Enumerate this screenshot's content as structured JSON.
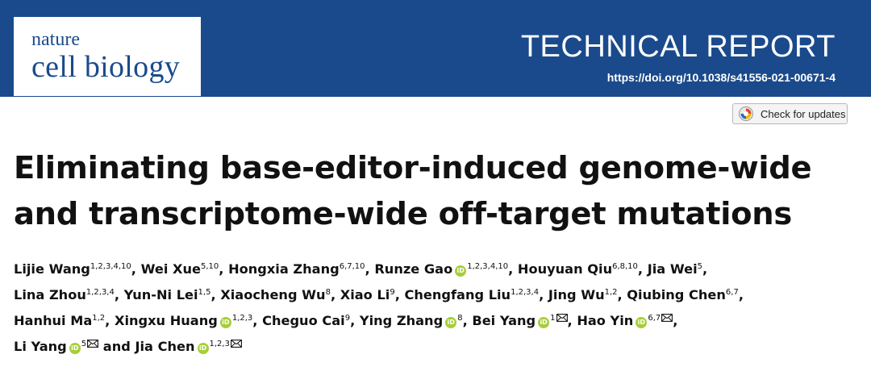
{
  "journal": {
    "name_line1": "nature",
    "name_line2": "cell biology"
  },
  "article_type": "TECHNICAL REPORT",
  "doi": "https://doi.org/10.1038/s41556-021-00671-4",
  "updates_button": {
    "label": "Check for updates",
    "icon": "check-for-updates-icon"
  },
  "title": {
    "line1": "Eliminating base-editor-induced genome-wide",
    "line2": "and transcriptome-wide off-target mutations"
  },
  "authors": [
    [
      {
        "name": "Lijie Wang",
        "aff": "1,2,3,4,10",
        "orcid": false,
        "corresponding": false,
        "sep": ", "
      },
      {
        "name": "Wei Xue",
        "aff": "5,10",
        "orcid": false,
        "corresponding": false,
        "sep": ", "
      },
      {
        "name": "Hongxia Zhang",
        "aff": "6,7,10",
        "orcid": false,
        "corresponding": false,
        "sep": ", "
      },
      {
        "name": "Runze Gao",
        "aff": "1,2,3,4,10",
        "orcid": true,
        "corresponding": false,
        "sep": ", "
      },
      {
        "name": "Houyuan Qiu",
        "aff": "6,8,10",
        "orcid": false,
        "corresponding": false,
        "sep": ", "
      },
      {
        "name": "Jia Wei",
        "aff": "5",
        "orcid": false,
        "corresponding": false,
        "sep": ","
      }
    ],
    [
      {
        "name": "Lina Zhou",
        "aff": "1,2,3,4",
        "orcid": false,
        "corresponding": false,
        "sep": ", "
      },
      {
        "name": "Yun-Ni Lei",
        "aff": "1,5",
        "orcid": false,
        "corresponding": false,
        "sep": ", "
      },
      {
        "name": "Xiaocheng Wu",
        "aff": "8",
        "orcid": false,
        "corresponding": false,
        "sep": ", "
      },
      {
        "name": "Xiao Li",
        "aff": "9",
        "orcid": false,
        "corresponding": false,
        "sep": ", "
      },
      {
        "name": "Chengfang Liu",
        "aff": "1,2,3,4",
        "orcid": false,
        "corresponding": false,
        "sep": ", "
      },
      {
        "name": "Jing Wu",
        "aff": "1,2",
        "orcid": false,
        "corresponding": false,
        "sep": ", "
      },
      {
        "name": "Qiubing Chen",
        "aff": "6,7",
        "orcid": false,
        "corresponding": false,
        "sep": ","
      }
    ],
    [
      {
        "name": "Hanhui Ma",
        "aff": "1,2",
        "orcid": false,
        "corresponding": false,
        "sep": ", "
      },
      {
        "name": "Xingxu Huang",
        "aff": "1,2,3",
        "orcid": true,
        "corresponding": false,
        "sep": ", "
      },
      {
        "name": "Cheguo Cai",
        "aff": "9",
        "orcid": false,
        "corresponding": false,
        "sep": ", "
      },
      {
        "name": "Ying Zhang",
        "aff": "8",
        "orcid": true,
        "corresponding": false,
        "sep": ", "
      },
      {
        "name": "Bei Yang",
        "aff": "1",
        "orcid": true,
        "corresponding": true,
        "sep": ", "
      },
      {
        "name": "Hao Yin",
        "aff": "6,7",
        "orcid": true,
        "corresponding": true,
        "sep": ","
      }
    ],
    [
      {
        "name": "Li Yang",
        "aff": "5",
        "orcid": true,
        "corresponding": true,
        "sep": " and "
      },
      {
        "name": "Jia Chen",
        "aff": "1,2,3",
        "orcid": true,
        "corresponding": true,
        "sep": ""
      }
    ]
  ],
  "colors": {
    "brand_blue": "#1a4a8c",
    "orcid_green": "#a6ce39"
  }
}
